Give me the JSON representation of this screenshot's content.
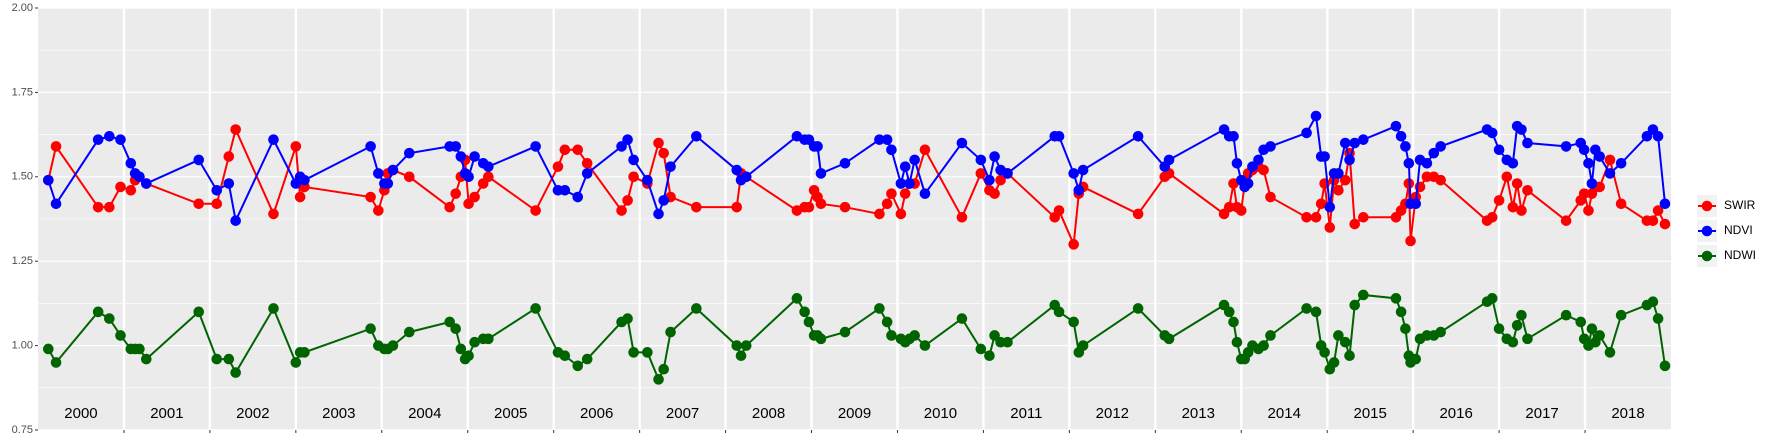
{
  "chart_data": {
    "type": "line",
    "xlim": [
      2000,
      2019
    ],
    "xticks": [
      2001,
      2002,
      2003,
      2004,
      2005,
      2006,
      2007,
      2008,
      2009,
      2010,
      2011,
      2012,
      2013,
      2014,
      2015,
      2016,
      2017,
      2018
    ],
    "year_labels": [
      "2000",
      "2001",
      "2002",
      "2003",
      "2004",
      "2005",
      "2006",
      "2007",
      "2008",
      "2009",
      "2010",
      "2011",
      "2012",
      "2013",
      "2014",
      "2015",
      "2016",
      "2017",
      "2018"
    ],
    "ylim": [
      0.75,
      2.0
    ],
    "yticks": [
      {
        "value": 0.75,
        "label": "0.75"
      },
      {
        "value": 1.0,
        "label": "1.00"
      },
      {
        "value": 1.25,
        "label": "1.25"
      },
      {
        "value": 1.5,
        "label": "1.50"
      },
      {
        "value": 1.75,
        "label": "1.75"
      },
      {
        "value": 2.0,
        "label": "2.00"
      }
    ],
    "grid": true,
    "legend": "right",
    "x": [
      2000.12,
      2000.21,
      2000.7,
      2000.83,
      2000.96,
      2001.08,
      2001.13,
      2001.18,
      2001.26,
      2001.87,
      2002.08,
      2002.22,
      2002.3,
      2002.74,
      2003.0,
      2003.05,
      2003.1,
      2003.87,
      2003.96,
      2004.03,
      2004.07,
      2004.13,
      2004.32,
      2004.79,
      2004.86,
      2004.92,
      2004.97,
      2005.01,
      2005.08,
      2005.18,
      2005.24,
      2005.79,
      2006.05,
      2006.13,
      2006.28,
      2006.39,
      2006.79,
      2006.86,
      2006.93,
      2007.09,
      2007.22,
      2007.28,
      2007.36,
      2007.66,
      2008.13,
      2008.18,
      2008.24,
      2008.83,
      2008.92,
      2008.97,
      2009.03,
      2009.07,
      2009.11,
      2009.39,
      2009.79,
      2009.88,
      2009.93,
      2010.04,
      2010.09,
      2010.14,
      2010.2,
      2010.32,
      2010.75,
      2010.97,
      2011.07,
      2011.13,
      2011.2,
      2011.28,
      2011.83,
      2011.88,
      2012.05,
      2012.11,
      2012.16,
      2012.8,
      2013.11,
      2013.16,
      2013.8,
      2013.86,
      2013.91,
      2013.95,
      2014.0,
      2014.04,
      2014.08,
      2014.13,
      2014.2,
      2014.26,
      2014.34,
      2014.76,
      2014.87,
      2014.93,
      2014.97,
      2015.03,
      2015.08,
      2015.13,
      2015.21,
      2015.26,
      2015.32,
      2015.42,
      2015.8,
      2015.86,
      2015.91,
      2015.95,
      2015.97,
      2016.03,
      2016.08,
      2016.16,
      2016.24,
      2016.32,
      2016.86,
      2016.92,
      2017.0,
      2017.09,
      2017.16,
      2017.21,
      2017.26,
      2017.33,
      2017.78,
      2017.95,
      2017.99,
      2018.04,
      2018.08,
      2018.12,
      2018.17,
      2018.29,
      2018.42,
      2018.72,
      2018.79,
      2018.85,
      2018.93
    ],
    "series": [
      {
        "name": "SWIR",
        "color": "#ff0000",
        "values": [
          1.49,
          1.59,
          1.41,
          1.41,
          1.47,
          1.46,
          1.49,
          1.5,
          1.48,
          1.42,
          1.42,
          1.56,
          1.64,
          1.39,
          1.59,
          1.44,
          1.47,
          1.44,
          1.4,
          1.46,
          1.51,
          1.52,
          1.5,
          1.41,
          1.45,
          1.5,
          1.55,
          1.42,
          1.44,
          1.48,
          1.5,
          1.4,
          1.53,
          1.58,
          1.58,
          1.54,
          1.4,
          1.43,
          1.5,
          1.48,
          1.6,
          1.57,
          1.44,
          1.41,
          1.41,
          1.51,
          1.5,
          1.4,
          1.41,
          1.41,
          1.46,
          1.44,
          1.42,
          1.41,
          1.39,
          1.42,
          1.45,
          1.39,
          1.45,
          1.48,
          1.48,
          1.58,
          1.38,
          1.51,
          1.46,
          1.45,
          1.49,
          1.51,
          1.38,
          1.4,
          1.3,
          1.45,
          1.47,
          1.39,
          1.5,
          1.51,
          1.39,
          1.41,
          1.48,
          1.41,
          1.4,
          1.48,
          1.51,
          1.52,
          1.53,
          1.52,
          1.44,
          1.38,
          1.38,
          1.42,
          1.48,
          1.35,
          1.49,
          1.46,
          1.49,
          1.57,
          1.36,
          1.38,
          1.38,
          1.4,
          1.42,
          1.48,
          1.31,
          1.44,
          1.47,
          1.5,
          1.5,
          1.49,
          1.37,
          1.38,
          1.43,
          1.5,
          1.41,
          1.48,
          1.4,
          1.46,
          1.37,
          1.43,
          1.45,
          1.4,
          1.45,
          1.47,
          1.47,
          1.55,
          1.42,
          1.37,
          1.37,
          1.4,
          1.36
        ]
      },
      {
        "name": "NDVI",
        "color": "#0000ff",
        "values": [
          1.49,
          1.42,
          1.61,
          1.62,
          1.61,
          1.54,
          1.51,
          1.5,
          1.48,
          1.55,
          1.46,
          1.48,
          1.37,
          1.61,
          1.48,
          1.5,
          1.49,
          1.59,
          1.51,
          1.48,
          1.48,
          1.52,
          1.57,
          1.59,
          1.59,
          1.56,
          1.51,
          1.5,
          1.56,
          1.54,
          1.53,
          1.59,
          1.46,
          1.46,
          1.44,
          1.51,
          1.59,
          1.61,
          1.55,
          1.49,
          1.39,
          1.43,
          1.53,
          1.62,
          1.52,
          1.49,
          1.5,
          1.62,
          1.61,
          1.61,
          1.59,
          1.59,
          1.51,
          1.54,
          1.61,
          1.61,
          1.58,
          1.48,
          1.53,
          1.48,
          1.55,
          1.45,
          1.6,
          1.55,
          1.49,
          1.56,
          1.52,
          1.51,
          1.62,
          1.62,
          1.51,
          1.46,
          1.52,
          1.62,
          1.53,
          1.55,
          1.64,
          1.62,
          1.62,
          1.54,
          1.49,
          1.47,
          1.48,
          1.53,
          1.55,
          1.58,
          1.59,
          1.63,
          1.68,
          1.56,
          1.56,
          1.41,
          1.51,
          1.51,
          1.6,
          1.55,
          1.6,
          1.61,
          1.65,
          1.62,
          1.59,
          1.54,
          1.42,
          1.42,
          1.55,
          1.54,
          1.57,
          1.59,
          1.64,
          1.63,
          1.58,
          1.55,
          1.54,
          1.65,
          1.64,
          1.6,
          1.59,
          1.6,
          1.58,
          1.54,
          1.48,
          1.58,
          1.56,
          1.51,
          1.54,
          1.62,
          1.64,
          1.62,
          1.42
        ]
      },
      {
        "name": "NDWI",
        "color": "#006400",
        "values": [
          0.99,
          0.95,
          1.1,
          1.08,
          1.03,
          0.99,
          0.99,
          0.99,
          0.96,
          1.1,
          0.96,
          0.96,
          0.92,
          1.11,
          0.95,
          0.98,
          0.98,
          1.05,
          1.0,
          0.99,
          0.99,
          1.0,
          1.04,
          1.07,
          1.05,
          0.99,
          0.96,
          0.97,
          1.01,
          1.02,
          1.02,
          1.11,
          0.98,
          0.97,
          0.94,
          0.96,
          1.07,
          1.08,
          0.98,
          0.98,
          0.9,
          0.93,
          1.04,
          1.11,
          1.0,
          0.97,
          1.0,
          1.14,
          1.1,
          1.07,
          1.03,
          1.03,
          1.02,
          1.04,
          1.11,
          1.07,
          1.03,
          1.02,
          1.01,
          1.02,
          1.03,
          1.0,
          1.08,
          0.99,
          0.97,
          1.03,
          1.01,
          1.01,
          1.12,
          1.1,
          1.07,
          0.98,
          1.0,
          1.11,
          1.03,
          1.02,
          1.12,
          1.1,
          1.07,
          1.01,
          0.96,
          0.96,
          0.98,
          1.0,
          0.99,
          1.0,
          1.03,
          1.11,
          1.1,
          1.0,
          0.98,
          0.93,
          0.95,
          1.03,
          1.01,
          0.97,
          1.12,
          1.15,
          1.14,
          1.1,
          1.05,
          0.97,
          0.95,
          0.96,
          1.02,
          1.03,
          1.03,
          1.04,
          1.13,
          1.14,
          1.05,
          1.02,
          1.01,
          1.06,
          1.09,
          1.02,
          1.09,
          1.07,
          1.02,
          1.0,
          1.05,
          1.01,
          1.03,
          0.98,
          1.09,
          1.12,
          1.13,
          1.08,
          0.94
        ]
      }
    ]
  }
}
